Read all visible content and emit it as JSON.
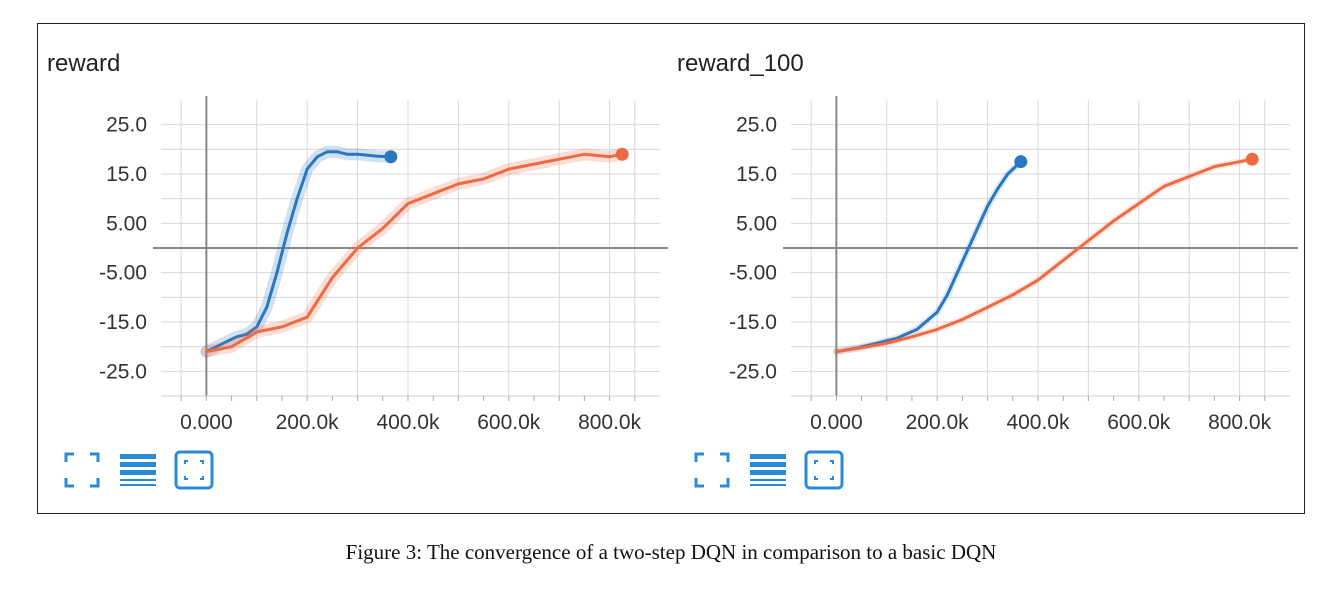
{
  "colors": {
    "blue": "#2a77c0",
    "orange": "#ee6a43",
    "blue_light": "#a9cbe8",
    "orange_light": "#f7c1ae",
    "grid": "#d9d9d9",
    "axis": "#888888",
    "icon": "#2a8ad6"
  },
  "chart_data": [
    {
      "type": "line",
      "title": "reward",
      "xlabel": "",
      "ylabel": "",
      "xlim": [
        -90000,
        900000
      ],
      "ylim": [
        -30,
        30
      ],
      "x_ticks": [
        "0.000",
        "200.0k",
        "400.0k",
        "600.0k",
        "800.0k"
      ],
      "y_ticks": [
        "25.0",
        "15.0",
        "5.00",
        "-5.00",
        "-15.0",
        "-25.0"
      ],
      "grid": true,
      "legend": "none",
      "series": [
        {
          "color": "#2a77c0",
          "x": [
            0,
            20000,
            40000,
            60000,
            80000,
            100000,
            120000,
            140000,
            160000,
            180000,
            200000,
            220000,
            240000,
            260000,
            280000,
            300000,
            320000,
            340000,
            366000
          ],
          "values": [
            -21,
            -20,
            -19,
            -18,
            -17.5,
            -16,
            -12,
            -5,
            3,
            10,
            16,
            18.5,
            19.5,
            19.5,
            19,
            19,
            18.8,
            18.6,
            18.5
          ]
        },
        {
          "color": "#ee6a43",
          "x": [
            0,
            50000,
            100000,
            150000,
            200000,
            250000,
            300000,
            350000,
            400000,
            450000,
            500000,
            550000,
            600000,
            650000,
            700000,
            750000,
            800000,
            825000
          ],
          "values": [
            -21,
            -20,
            -17,
            -16,
            -14,
            -6,
            0,
            4,
            9,
            11,
            13,
            14,
            16,
            17,
            18,
            19,
            18.5,
            19
          ]
        }
      ]
    },
    {
      "type": "line",
      "title": "reward_100",
      "xlabel": "",
      "ylabel": "",
      "xlim": [
        -90000,
        900000
      ],
      "ylim": [
        -30,
        30
      ],
      "x_ticks": [
        "0.000",
        "200.0k",
        "400.0k",
        "600.0k",
        "800.0k"
      ],
      "y_ticks": [
        "25.0",
        "15.0",
        "5.00",
        "-5.00",
        "-15.0",
        "-25.0"
      ],
      "grid": true,
      "legend": "none",
      "series": [
        {
          "color": "#2a77c0",
          "x": [
            0,
            40000,
            80000,
            120000,
            160000,
            200000,
            220000,
            240000,
            260000,
            280000,
            300000,
            320000,
            340000,
            366000
          ],
          "values": [
            -21,
            -20.3,
            -19.3,
            -18.3,
            -16.5,
            -13,
            -9.5,
            -5,
            -0.5,
            4,
            8.5,
            12,
            15,
            17.5
          ]
        },
        {
          "color": "#ee6a43",
          "x": [
            0,
            50000,
            100000,
            150000,
            200000,
            250000,
            300000,
            350000,
            400000,
            450000,
            500000,
            550000,
            600000,
            650000,
            700000,
            750000,
            800000,
            825000
          ],
          "values": [
            -21,
            -20.2,
            -19.3,
            -18,
            -16.5,
            -14.5,
            -12,
            -9.5,
            -6.5,
            -2.5,
            1.5,
            5.5,
            9,
            12.5,
            14.5,
            16.5,
            17.5,
            18
          ]
        }
      ]
    }
  ],
  "caption": "Figure 3: The convergence of a two-step DQN in comparison to a basic DQN"
}
